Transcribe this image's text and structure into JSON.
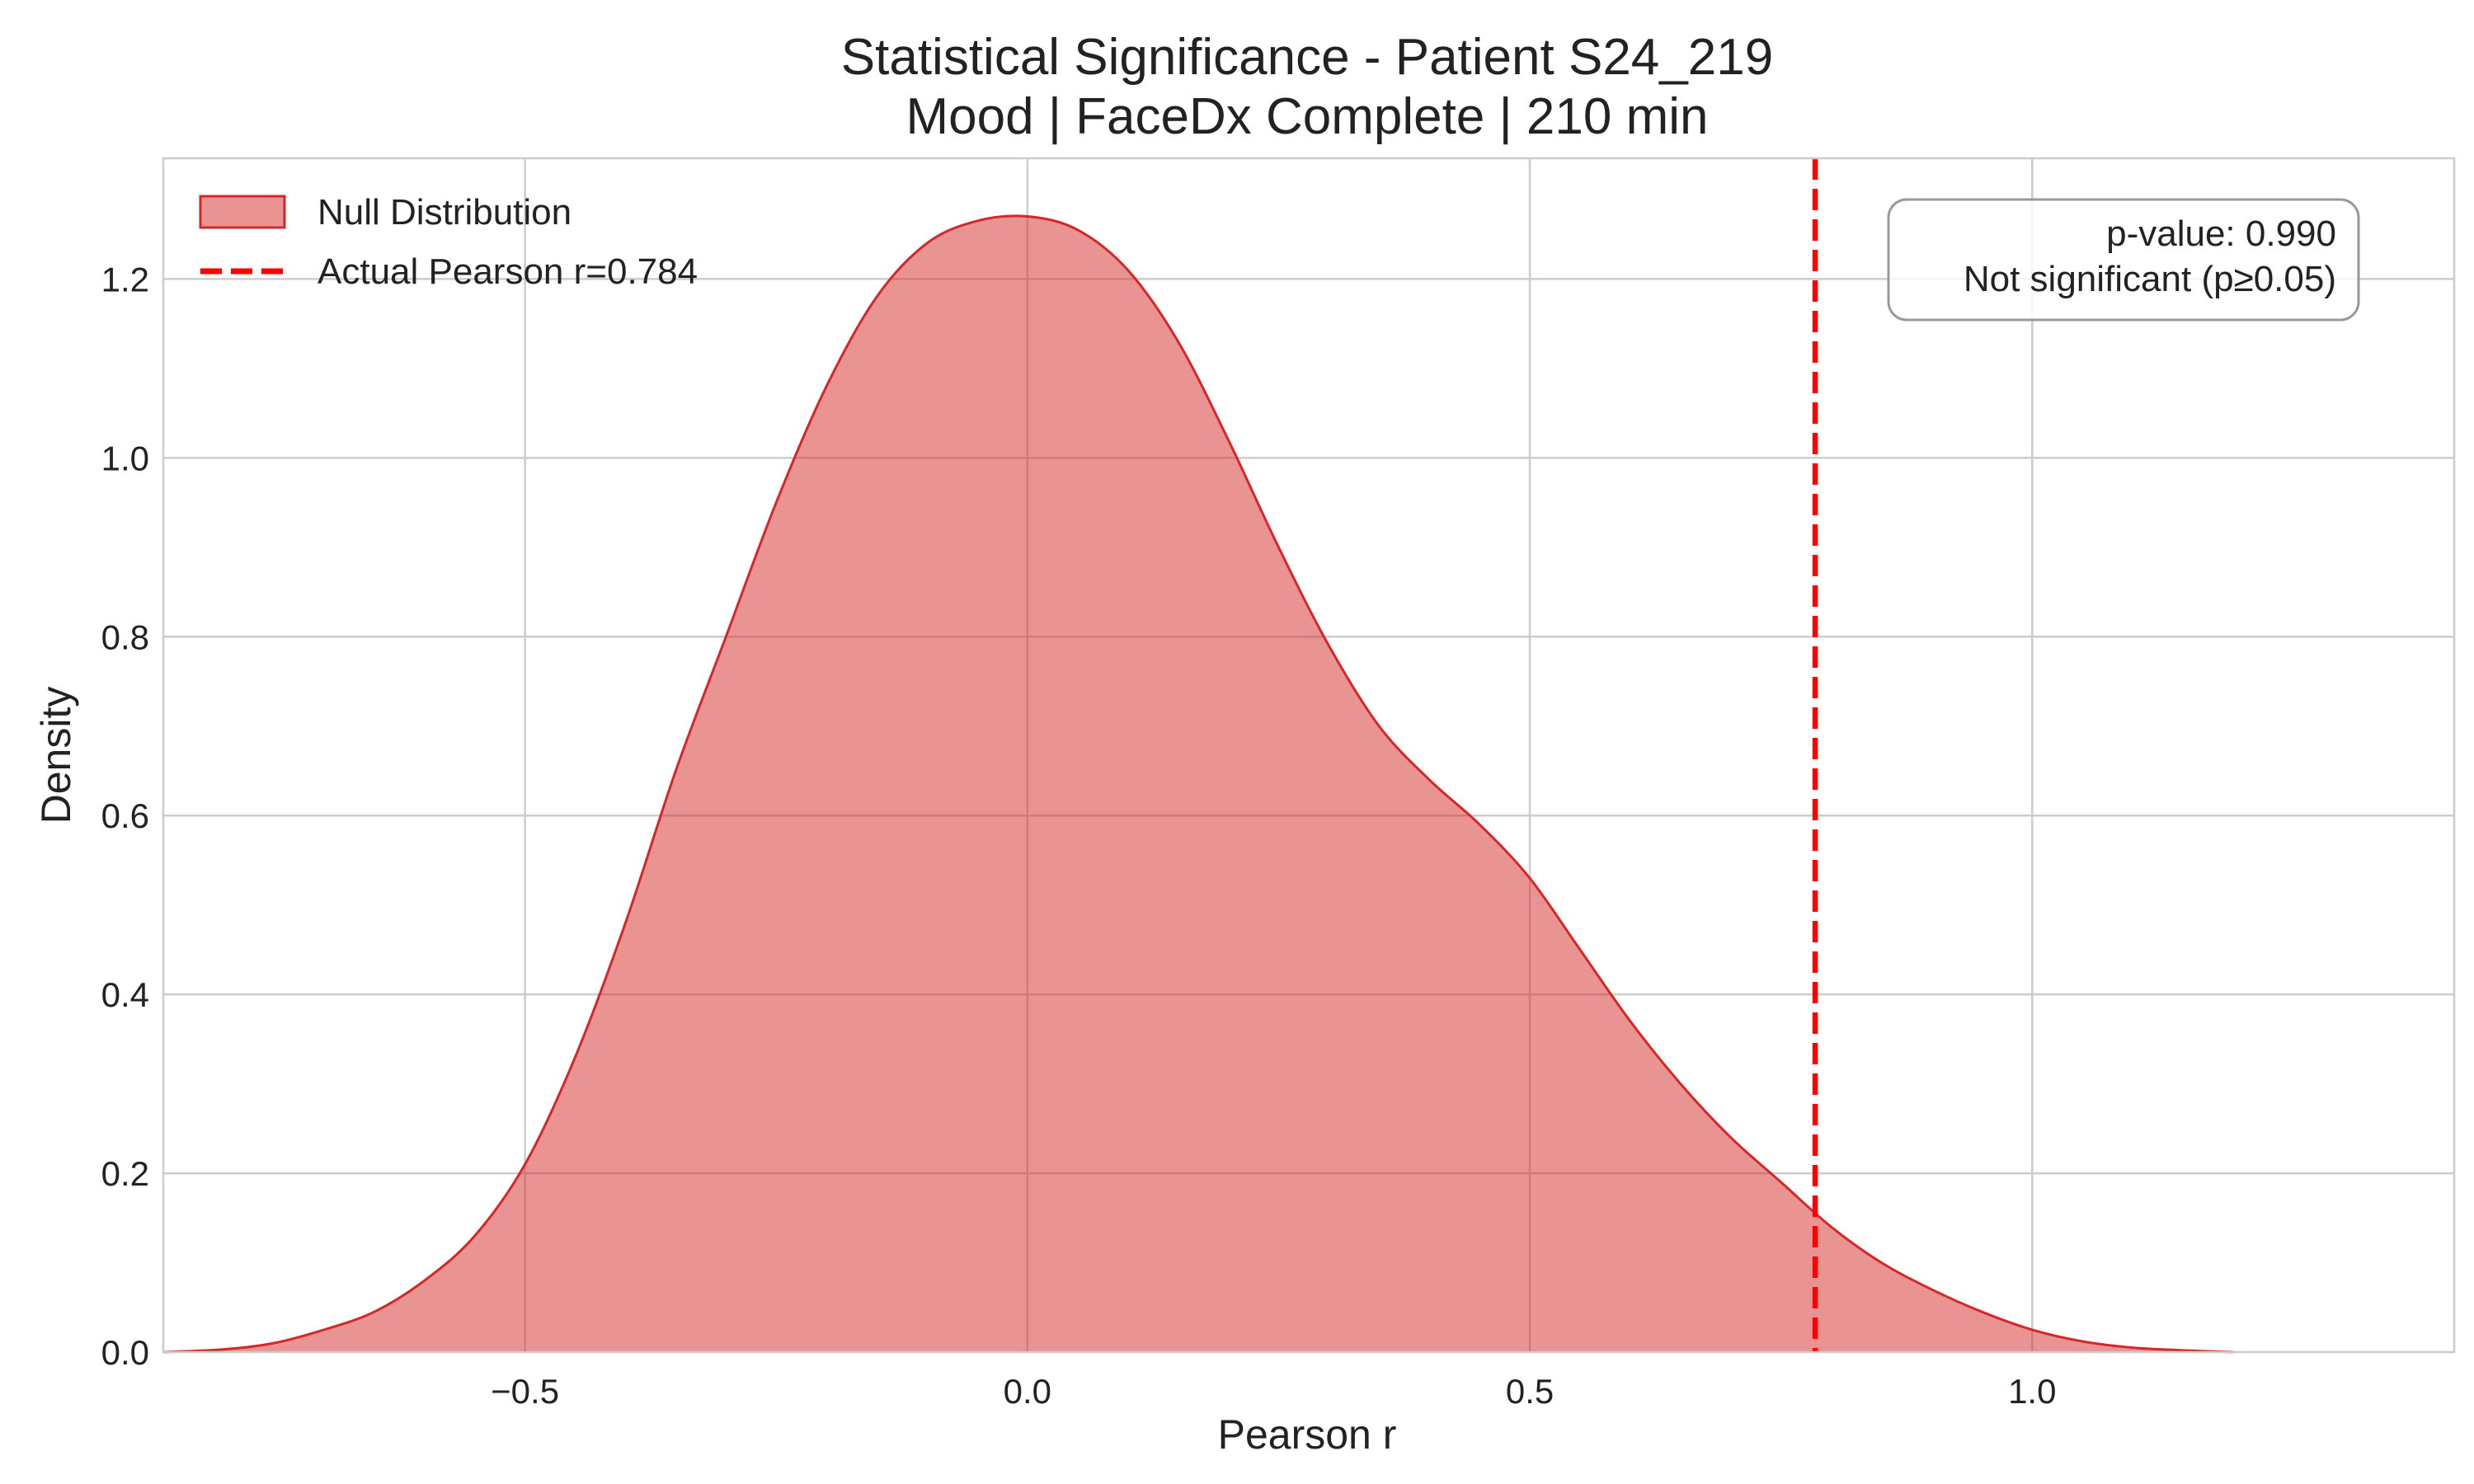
{
  "chart_data": {
    "type": "area",
    "title": "Statistical Significance - Patient S24_219",
    "subtitle": "Mood | FaceDx Complete | 210 min",
    "xlabel": "Pearson r",
    "ylabel": "Density",
    "xlim": [
      -0.86,
      1.42
    ],
    "ylim": [
      0,
      1.335
    ],
    "xticks": [
      -0.5,
      0.0,
      0.5,
      1.0
    ],
    "xtick_labels": [
      "−0.5",
      "0.0",
      "0.5",
      "1.0"
    ],
    "yticks": [
      0.0,
      0.2,
      0.4,
      0.6,
      0.8,
      1.0,
      1.2
    ],
    "ytick_labels": [
      "0.0",
      "0.2",
      "0.4",
      "0.6",
      "0.8",
      "1.0",
      "1.2"
    ],
    "grid": true,
    "legend_position": "top-left",
    "series": [
      {
        "name": "Null Distribution",
        "kind": "kde-fill",
        "color": "#d62728",
        "x": [
          -0.86,
          -0.8,
          -0.75,
          -0.7,
          -0.65,
          -0.6,
          -0.55,
          -0.5,
          -0.45,
          -0.4,
          -0.35,
          -0.3,
          -0.25,
          -0.2,
          -0.15,
          -0.1,
          -0.05,
          0.0,
          0.05,
          0.1,
          0.15,
          0.2,
          0.25,
          0.3,
          0.35,
          0.4,
          0.45,
          0.5,
          0.55,
          0.6,
          0.65,
          0.7,
          0.75,
          0.8,
          0.85,
          0.9,
          0.95,
          1.0,
          1.05,
          1.1,
          1.15,
          1.2
        ],
        "y": [
          0.0,
          0.003,
          0.01,
          0.025,
          0.045,
          0.08,
          0.13,
          0.21,
          0.33,
          0.48,
          0.65,
          0.8,
          0.95,
          1.08,
          1.18,
          1.24,
          1.265,
          1.27,
          1.255,
          1.21,
          1.13,
          1.02,
          0.9,
          0.79,
          0.7,
          0.64,
          0.59,
          0.53,
          0.45,
          0.37,
          0.3,
          0.24,
          0.19,
          0.14,
          0.1,
          0.07,
          0.045,
          0.025,
          0.012,
          0.005,
          0.002,
          0.0
        ]
      },
      {
        "name": "Actual Pearson r=0.784",
        "kind": "vline",
        "color": "#ff0000",
        "x": 0.784
      }
    ],
    "annotation": {
      "lines": [
        "p-value: 0.990",
        "Not significant (p≥0.05)"
      ],
      "position": "top-right"
    }
  }
}
